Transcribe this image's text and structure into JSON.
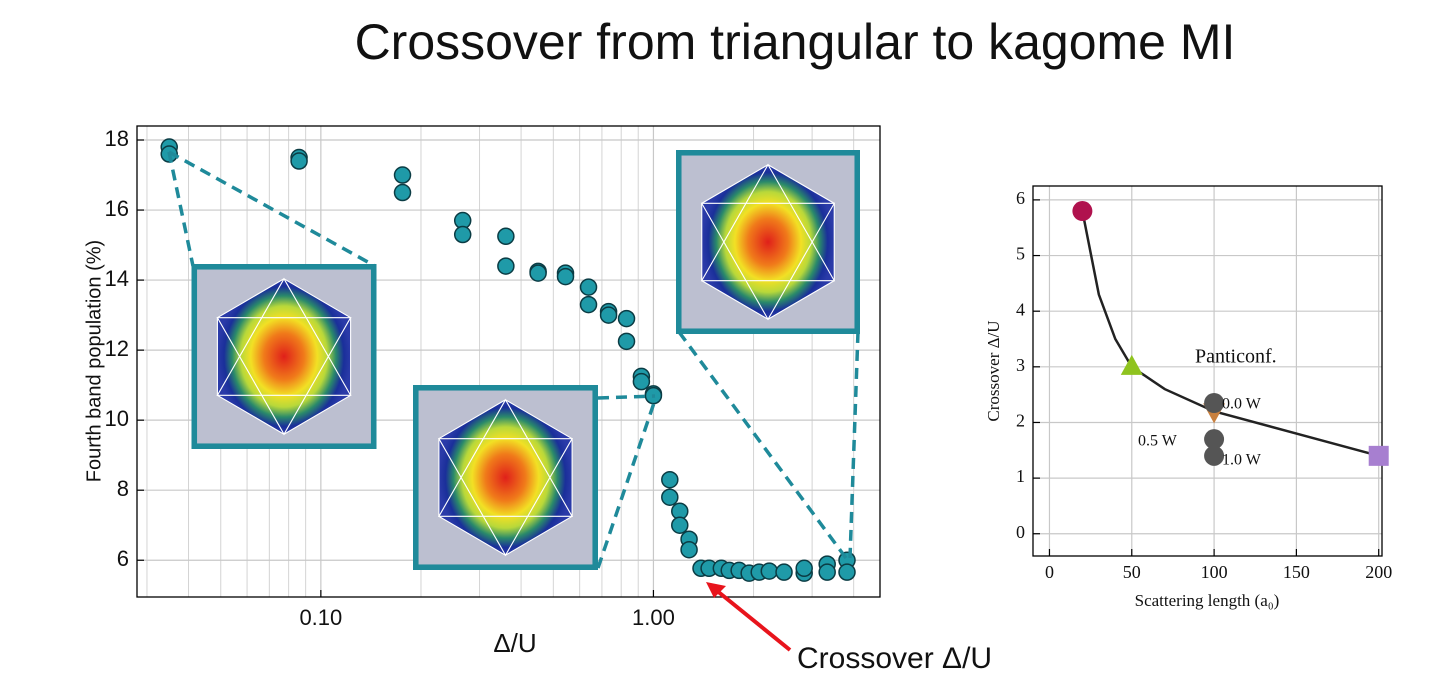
{
  "chart_data": [
    {
      "type": "scatter",
      "title": "Crossover from triangular to kagome MI",
      "xlabel": "Δ/U",
      "ylabel": "Fourth band population (%)",
      "xscale": "log",
      "xlim": [
        0.028,
        4.8
      ],
      "ylim": [
        4.95,
        18.4
      ],
      "xticks": [
        {
          "value": 0.1,
          "label": "0.10"
        },
        {
          "value": 1,
          "label": "1.00"
        }
      ],
      "xminorticks": [
        0.03,
        0.04,
        0.05,
        0.06,
        0.07,
        0.08,
        0.09,
        0.2,
        0.3,
        0.4,
        0.5,
        0.6,
        0.7,
        0.8,
        0.9,
        2,
        3,
        4
      ],
      "yticks": [
        6,
        8,
        10,
        12,
        14,
        16,
        18
      ],
      "grid": true,
      "annotations": [
        "Crossover Δ/U"
      ],
      "series": [
        {
          "type": "scatter",
          "marker": "circle",
          "color": "#1f9aa8",
          "x": [
            0.035,
            0.035,
            0.086,
            0.086,
            0.176,
            0.176,
            0.267,
            0.267,
            0.36,
            0.36,
            0.45,
            0.45,
            0.544,
            0.544,
            0.638,
            0.638,
            0.733,
            0.733,
            0.83,
            0.83,
            0.92,
            0.92,
            1.0,
            1.0,
            1.12,
            1.12,
            1.2,
            1.2,
            1.28,
            1.28,
            1.39,
            1.47,
            1.6,
            1.69,
            1.81,
            1.94,
            2.08,
            2.23,
            2.47,
            2.84,
            2.84,
            3.33,
            3.33,
            3.82,
            3.82
          ],
          "values": [
            17.8,
            17.6,
            17.5,
            17.4,
            17.0,
            16.5,
            15.7,
            15.3,
            15.25,
            14.4,
            14.25,
            14.2,
            14.2,
            14.1,
            13.8,
            13.3,
            13.1,
            13.0,
            12.9,
            12.25,
            11.25,
            11.1,
            10.75,
            10.7,
            8.3,
            7.8,
            7.4,
            7.0,
            6.6,
            6.3,
            5.77,
            5.77,
            5.77,
            5.71,
            5.71,
            5.63,
            5.66,
            5.69,
            5.66,
            5.63,
            5.77,
            5.89,
            5.66,
            6.0,
            5.66
          ]
        }
      ]
    },
    {
      "type": "line",
      "xlabel": "Scattering length (a₀)",
      "ylabel": "Crossover Δ/U",
      "xlim": [
        -10,
        202
      ],
      "ylim": [
        -0.4,
        6.25
      ],
      "xticks": [
        0,
        50,
        100,
        150,
        200
      ],
      "yticks": [
        0,
        1,
        2,
        3,
        4,
        5,
        6
      ],
      "grid": true,
      "annotations": [
        "Panticonf.",
        "0.0 W",
        "0.5 W",
        "1.0 W"
      ],
      "series": [
        {
          "type": "line",
          "color": "#222222",
          "x": [
            20,
            30,
            40,
            50,
            70,
            100,
            150,
            200
          ],
          "values": [
            5.8,
            4.3,
            3.5,
            3.0,
            2.6,
            2.2,
            1.8,
            1.4
          ]
        },
        {
          "type": "scatter",
          "marker": "circle",
          "color": "#b0124e",
          "x": [
            20
          ],
          "values": [
            5.8
          ]
        },
        {
          "type": "scatter",
          "marker": "triangle-up",
          "color": "#8fc31f",
          "x": [
            50
          ],
          "values": [
            3.0
          ]
        },
        {
          "type": "scatter",
          "marker": "triangle-down",
          "color": "#c8803f",
          "x": [
            100
          ],
          "values": [
            2.2
          ]
        },
        {
          "type": "scatter",
          "marker": "circle",
          "color": "#555555",
          "x": [
            100,
            100,
            100
          ],
          "values": [
            2.35,
            1.7,
            1.4
          ]
        },
        {
          "type": "scatter",
          "marker": "square",
          "color": "#a77fd0",
          "x": [
            200
          ],
          "values": [
            1.4
          ]
        }
      ]
    }
  ]
}
